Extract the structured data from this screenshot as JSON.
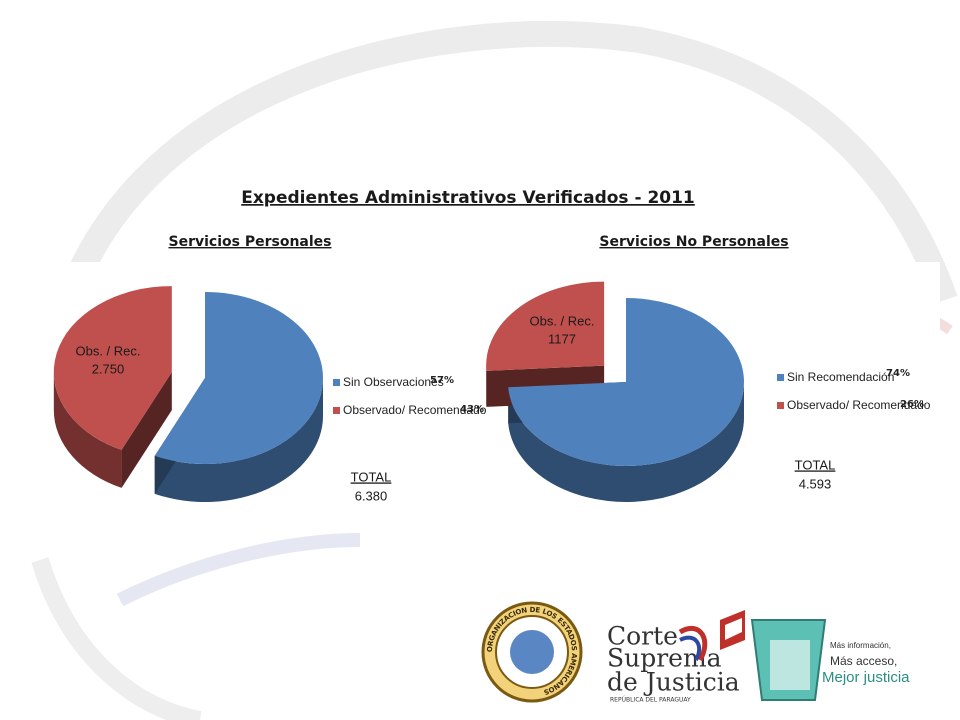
{
  "title": "Expedientes  Administrativos  Verificados - 2011",
  "chart_data": [
    {
      "type": "pie",
      "title": "Servicios Personales",
      "categories": [
        "Sin Observaciones",
        "Observado/ Recomendado"
      ],
      "values": [
        57,
        43
      ],
      "value_labels": [
        "57%",
        "43%"
      ],
      "colors": [
        "#4f81bd",
        "#c0504d"
      ],
      "annotations": {
        "slice_label": "Obs. / Rec.",
        "slice_value": "2.750",
        "total_label": "TOTAL",
        "total_value": "6.380"
      }
    },
    {
      "type": "pie",
      "title": "Servicios No Personales",
      "categories": [
        "Sin Recomendación",
        "Observado/ Recomendado"
      ],
      "values": [
        74,
        26
      ],
      "value_labels": [
        "74%",
        "26%"
      ],
      "colors": [
        "#4f81bd",
        "#c0504d"
      ],
      "annotations": {
        "slice_label": "Obs. / Rec.",
        "slice_value": "1177",
        "total_label": "TOTAL",
        "total_value": "4.593"
      }
    }
  ],
  "logos": {
    "oas_seal": "ORGANIZACION DE LOS ESTADOS AMERICANOS",
    "court": [
      "Corte",
      "Suprema",
      "de Justicia"
    ],
    "court_sub": "REPÚBLICA DEL PARAGUAY",
    "slogan": [
      "Más información,",
      "Más acceso,",
      "Mejor justicia"
    ]
  }
}
